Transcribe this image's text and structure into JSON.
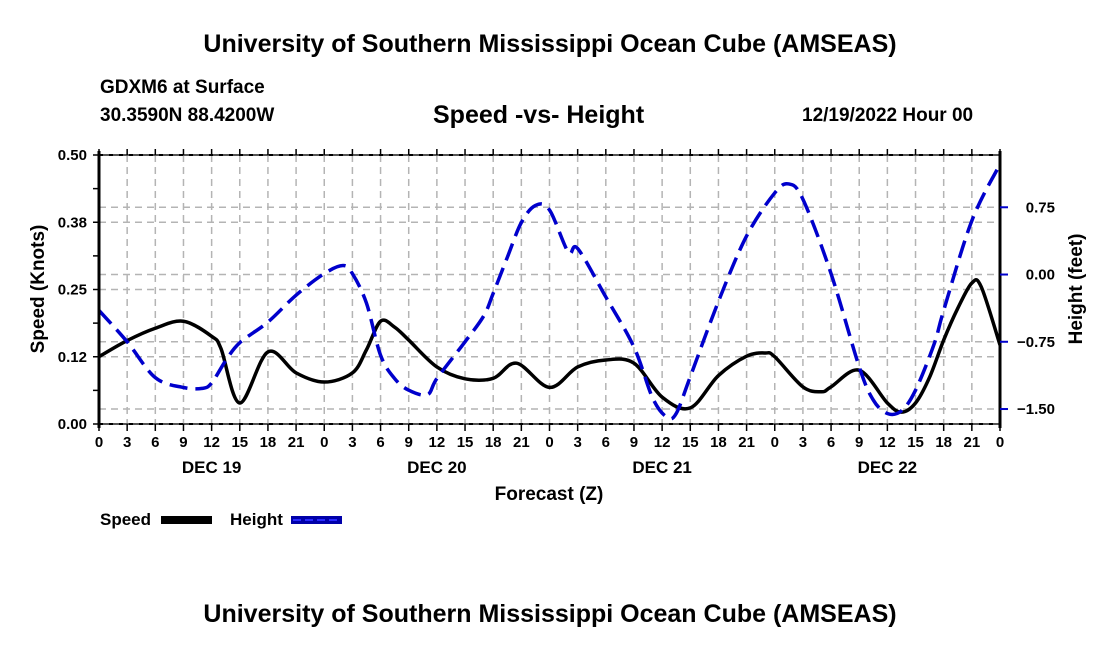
{
  "header": {
    "title": "University of Southern Mississippi Ocean Cube (AMSEAS)",
    "station": "GDXM6 at Surface",
    "coordinates": "30.3590N  88.4200W",
    "subtitle": "Speed -vs- Height",
    "datetime": "12/19/2022 Hour 00"
  },
  "footer": {
    "title": "University of Southern Mississippi Ocean Cube (AMSEAS)"
  },
  "chart_data": {
    "type": "line",
    "title": "Speed -vs- Height",
    "xlabel": "Forecast (Z)",
    "ylabel": "Speed (Knots)",
    "y2label": "Height (feet)",
    "xlim": [
      0,
      96
    ],
    "ylim": [
      0,
      0.5
    ],
    "y2lim": [
      -1.667,
      1.333
    ],
    "grid": true,
    "x_tick_labels": [
      "0",
      "3",
      "6",
      "9",
      "12",
      "15",
      "18",
      "21",
      "0",
      "3",
      "6",
      "9",
      "12",
      "15",
      "18",
      "21",
      "0",
      "3",
      "6",
      "9",
      "12",
      "15",
      "18",
      "21",
      "0",
      "3",
      "6",
      "9",
      "12",
      "15",
      "18",
      "21",
      "0"
    ],
    "day_labels": [
      {
        "label": "DEC 19",
        "hour": 12
      },
      {
        "label": "DEC 20",
        "hour": 36
      },
      {
        "label": "DEC 21",
        "hour": 60
      },
      {
        "label": "DEC 22",
        "hour": 84
      }
    ],
    "y_ticks": [
      {
        "value": 0.0,
        "label": "0.00"
      },
      {
        "value": 0.125,
        "label": "0.12"
      },
      {
        "value": 0.25,
        "label": "0.25"
      },
      {
        "value": 0.375,
        "label": "0.38"
      },
      {
        "value": 0.5,
        "label": "0.50"
      }
    ],
    "y2_ticks": [
      {
        "value": 0.75,
        "label": "0.75"
      },
      {
        "value": 0.0,
        "label": "0.00"
      },
      {
        "value": -0.75,
        "label": "−0.75"
      },
      {
        "value": -1.5,
        "label": "−1.50"
      }
    ],
    "legend": {
      "placement": "bottom-left"
    },
    "series": [
      {
        "name": "Speed",
        "axis": "left",
        "color": "#000000",
        "style": "solid",
        "x": [
          0,
          3,
          6,
          9,
          12,
          13,
          15,
          18,
          21,
          24,
          27,
          28.5,
          30,
          31.5,
          33,
          36,
          39,
          42,
          44.5,
          48,
          51,
          54,
          57,
          60,
          63,
          66,
          69,
          71,
          72,
          75,
          77,
          78,
          81,
          84,
          85.5,
          87,
          88.5,
          90,
          91.5,
          93,
          94,
          96
        ],
        "values": [
          0.125,
          0.155,
          0.178,
          0.191,
          0.163,
          0.14,
          0.039,
          0.134,
          0.095,
          0.078,
          0.095,
          0.138,
          0.191,
          0.18,
          0.156,
          0.106,
          0.084,
          0.085,
          0.113,
          0.068,
          0.106,
          0.119,
          0.113,
          0.05,
          0.03,
          0.09,
          0.126,
          0.132,
          0.125,
          0.069,
          0.06,
          0.069,
          0.1,
          0.039,
          0.022,
          0.039,
          0.087,
          0.156,
          0.215,
          0.262,
          0.255,
          0.147
        ]
      },
      {
        "name": "Height",
        "axis": "right",
        "color": "#0000cc",
        "style": "dashed",
        "x": [
          0,
          3,
          6,
          9,
          11,
          12,
          13.5,
          15,
          18,
          21,
          24,
          26,
          27,
          28.5,
          30,
          31.5,
          33,
          35,
          36,
          39,
          41,
          42,
          43.5,
          45,
          46.5,
          48,
          50,
          51,
          54,
          57,
          59,
          60.5,
          61.5,
          63,
          66,
          69,
          72,
          73.5,
          75,
          78,
          81,
          82.5,
          84,
          85.5,
          87,
          89,
          90,
          93,
          96
        ],
        "values": [
          -0.4,
          -0.75,
          -1.15,
          -1.26,
          -1.27,
          -1.21,
          -0.96,
          -0.76,
          -0.53,
          -0.23,
          0.01,
          0.1,
          0.01,
          -0.32,
          -0.9,
          -1.16,
          -1.29,
          -1.34,
          -1.16,
          -0.75,
          -0.46,
          -0.21,
          0.19,
          0.58,
          0.77,
          0.72,
          0.25,
          0.29,
          -0.25,
          -0.81,
          -1.38,
          -1.59,
          -1.55,
          -1.14,
          -0.3,
          0.43,
          0.91,
          1.01,
          0.84,
          0.01,
          -1.03,
          -1.4,
          -1.55,
          -1.52,
          -1.29,
          -0.77,
          -0.4,
          0.6,
          1.23
        ]
      }
    ]
  }
}
